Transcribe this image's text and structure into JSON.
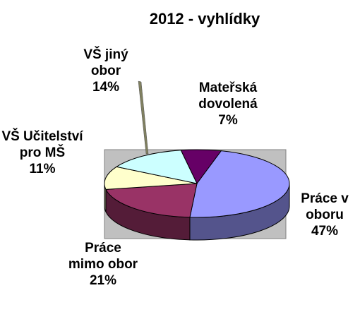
{
  "chart_data": {
    "type": "pie3d",
    "title": "2012 - vyhlídky",
    "categories": [
      "Mateřská dovolená",
      "Práce v oboru",
      "Práce mimo obor",
      "VŠ Učitelství pro MŠ",
      "VŠ jiný obor"
    ],
    "values": [
      7,
      47,
      21,
      11,
      14
    ],
    "value_labels": [
      "7%",
      "47%",
      "21%",
      "11%",
      "14%"
    ],
    "colors": [
      "#660066",
      "#9999ff",
      "#993366",
      "#ffffcc",
      "#ccffff"
    ]
  }
}
